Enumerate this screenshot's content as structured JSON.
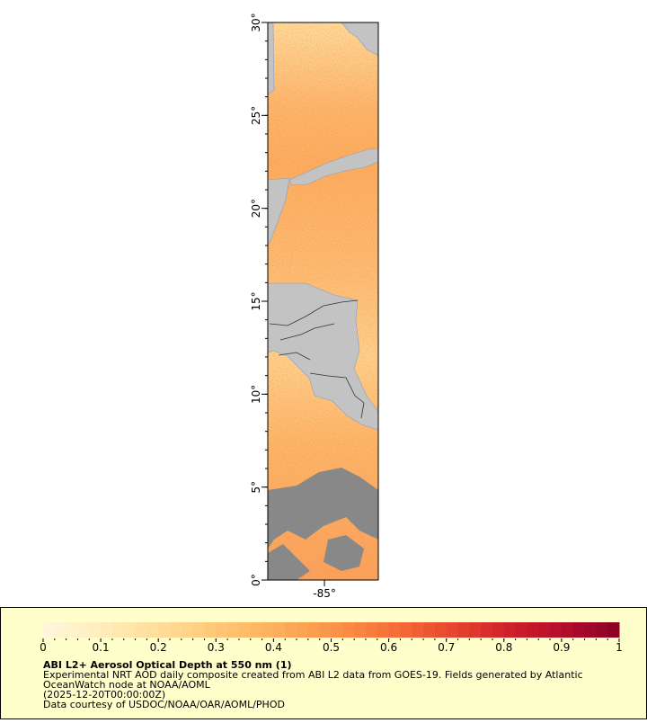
{
  "map": {
    "latlim": [
      0,
      30
    ],
    "lonlim": [
      -88.05,
      -82.1
    ],
    "lat_ticks": [
      {
        "value": 0,
        "label": "0°"
      },
      {
        "value": 5,
        "label": "5°"
      },
      {
        "value": 10,
        "label": "10°"
      },
      {
        "value": 15,
        "label": "15°"
      },
      {
        "value": 20,
        "label": "20°"
      },
      {
        "value": 25,
        "label": "25°"
      },
      {
        "value": 30,
        "label": "30°"
      }
    ],
    "lon_ticks": [
      {
        "value": -85,
        "label": "-85°"
      }
    ]
  },
  "colorbar": {
    "lim": [
      0,
      1
    ],
    "ticks": [
      0,
      0.1,
      0.2,
      0.3,
      0.4,
      0.5,
      0.6,
      0.7,
      0.8,
      0.9,
      1
    ],
    "colors": [
      "#fff7dc",
      "#ffeebb",
      "#ffdd99",
      "#fec877",
      "#fdb15c",
      "#fb9448",
      "#f6723a",
      "#e94a2f",
      "#d2232a",
      "#b50d2a",
      "#8a0125"
    ]
  },
  "legend": {
    "title": "ABI L2+ Aerosol Optical Depth at 550 nm (1)",
    "lines": [
      "Experimental NRT AOD daily composite created from ABI L2 data from GOES-19. Fields generated by Atlantic",
      "OceanWatch node at NOAA/AOML",
      "(2025-12-20T00:00:00Z)",
      "Data courtesy of USDOC/NOAA/OAR/AOML/PHOD"
    ]
  }
}
